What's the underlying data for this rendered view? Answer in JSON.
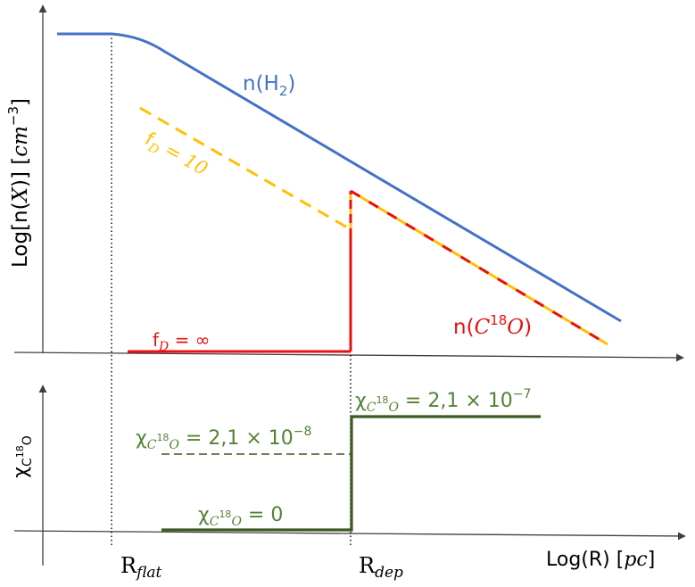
{
  "top_panel": {
    "ylabel": {
      "pre": "Log[n(",
      "var": "X",
      "mid": ")] [",
      "unit": "cm",
      "exp": "−3",
      "post": "]"
    },
    "h2_label": {
      "pre": "n(H",
      "sub": "2",
      "post": ")"
    },
    "c18o_label": {
      "pre": "n(",
      "var": "C",
      "sup": "18",
      "var2": "O",
      "post": ")"
    },
    "fd10_label": {
      "f": "f",
      "sub": "D",
      "eq": " = 10"
    },
    "fdinf_label": {
      "f": "f",
      "sub": "D",
      "eq": " =  ∞"
    }
  },
  "bottom_panel": {
    "ylabel": {
      "chi": "χ",
      "sub": "C",
      "sup": "18",
      "sub2": "O"
    },
    "high_label": {
      "chi": "χ",
      "sub": "C",
      "sup": "18",
      "sub2": "O",
      "eq": " = 2,1  ×  10",
      "exp": "−7"
    },
    "mid_label": {
      "chi": "χ",
      "sub": "C",
      "sup": "18",
      "sub2": "O",
      "eq": " = 2,1  ×  10",
      "exp": "−8"
    },
    "zero_label": {
      "chi": "χ",
      "sub": "C",
      "sup": "18",
      "sub2": "O",
      "eq": " = 0"
    }
  },
  "xaxis": {
    "label": {
      "pre": "Log(R) [",
      "unit": "pc",
      "post": "]"
    },
    "rflat": {
      "r": "R",
      "sub": "flat"
    },
    "rdep": {
      "r": "R",
      "sub": "dep"
    }
  },
  "colors": {
    "h2": "#4472C4",
    "c18o": "#E81010",
    "fd10": "#FFC000",
    "chi": "#3C5A1E",
    "chi_label": "#548235",
    "axis": "#404040"
  }
}
